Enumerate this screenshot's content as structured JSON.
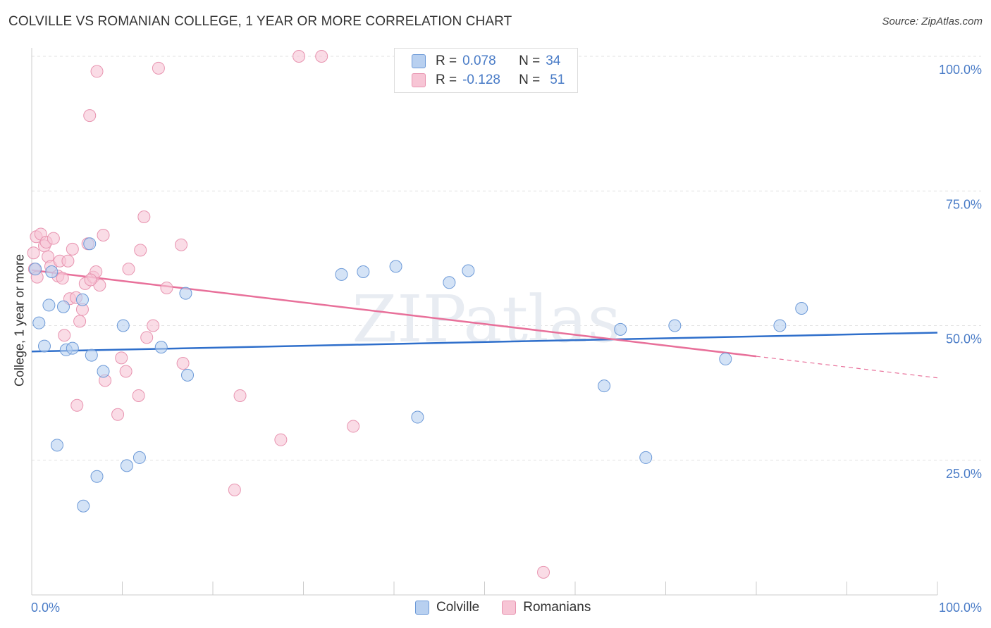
{
  "title": "COLVILLE VS ROMANIAN COLLEGE, 1 YEAR OR MORE CORRELATION CHART",
  "source": "Source: ZipAtlas.com",
  "watermark": "ZIPatlas",
  "legend": {
    "colville": {
      "r_label": "R =",
      "r_value": "0.078",
      "n_label": "N =",
      "n_value": "34"
    },
    "romanians": {
      "r_label": "R =",
      "r_value": "-0.128",
      "n_label": "N =",
      "n_value": "51"
    }
  },
  "colors": {
    "blue_fill": "#b8d0f0",
    "blue_stroke": "#6d9ad8",
    "blue_line": "#2f6fcb",
    "pink_fill": "#f7c5d5",
    "pink_stroke": "#e894b0",
    "pink_line": "#e8709a",
    "tick_text": "#4a7cc7",
    "grid": "#e2e2e2"
  },
  "chart_data": {
    "type": "scatter",
    "title": "COLVILLE VS ROMANIAN COLLEGE, 1 YEAR OR MORE CORRELATION CHART",
    "xlabel": "",
    "ylabel": "College, 1 year or more",
    "xlim": [
      0,
      100
    ],
    "ylim": [
      0,
      100
    ],
    "x_tick_labels": [
      "0.0%",
      "100.0%"
    ],
    "y_ticks": [
      25,
      50,
      75,
      100
    ],
    "y_tick_labels": [
      "25.0%",
      "50.0%",
      "75.0%",
      "100.0%"
    ],
    "series": [
      {
        "name": "Colville",
        "points": [
          [
            0.4,
            60.5
          ],
          [
            0.8,
            50.5
          ],
          [
            1.4,
            46.2
          ],
          [
            1.9,
            53.8
          ],
          [
            2.2,
            60.0
          ],
          [
            2.8,
            27.8
          ],
          [
            3.5,
            53.5
          ],
          [
            3.8,
            45.5
          ],
          [
            4.5,
            45.8
          ],
          [
            5.6,
            54.8
          ],
          [
            5.7,
            16.5
          ],
          [
            6.4,
            65.2
          ],
          [
            6.6,
            44.5
          ],
          [
            7.2,
            22.0
          ],
          [
            7.9,
            41.5
          ],
          [
            10.1,
            50.0
          ],
          [
            10.5,
            24.0
          ],
          [
            11.9,
            25.5
          ],
          [
            14.3,
            46.0
          ],
          [
            17.2,
            40.8
          ],
          [
            17.0,
            56.0
          ],
          [
            34.2,
            59.5
          ],
          [
            36.6,
            60.0
          ],
          [
            40.2,
            61.0
          ],
          [
            42.6,
            33.0
          ],
          [
            46.1,
            58.0
          ],
          [
            48.2,
            60.2
          ],
          [
            63.2,
            38.8
          ],
          [
            65.0,
            49.3
          ],
          [
            67.8,
            25.5
          ],
          [
            71.0,
            50.0
          ],
          [
            76.6,
            43.8
          ],
          [
            82.6,
            50.0
          ],
          [
            85.0,
            53.2
          ]
        ]
      },
      {
        "name": "Romanians",
        "points": [
          [
            0.5,
            66.5
          ],
          [
            1.0,
            67.0
          ],
          [
            1.4,
            64.8
          ],
          [
            1.6,
            65.5
          ],
          [
            1.8,
            62.8
          ],
          [
            2.1,
            61.0
          ],
          [
            2.4,
            66.2
          ],
          [
            2.9,
            59.2
          ],
          [
            3.1,
            62.0
          ],
          [
            3.4,
            58.8
          ],
          [
            3.6,
            48.2
          ],
          [
            4.0,
            62.0
          ],
          [
            4.2,
            55.0
          ],
          [
            4.5,
            64.2
          ],
          [
            4.9,
            55.2
          ],
          [
            5.0,
            35.2
          ],
          [
            5.3,
            50.8
          ],
          [
            5.6,
            53.0
          ],
          [
            5.9,
            57.8
          ],
          [
            6.2,
            65.2
          ],
          [
            6.4,
            89.0
          ],
          [
            6.8,
            59.0
          ],
          [
            7.1,
            60.0
          ],
          [
            7.2,
            97.2
          ],
          [
            7.5,
            57.5
          ],
          [
            7.9,
            66.8
          ],
          [
            8.1,
            39.8
          ],
          [
            9.5,
            33.5
          ],
          [
            9.9,
            44.0
          ],
          [
            10.4,
            41.5
          ],
          [
            10.7,
            60.5
          ],
          [
            11.8,
            37.0
          ],
          [
            12.0,
            64.0
          ],
          [
            12.4,
            70.2
          ],
          [
            12.7,
            47.8
          ],
          [
            13.4,
            50.0
          ],
          [
            14.0,
            97.8
          ],
          [
            14.9,
            57.0
          ],
          [
            16.5,
            65.0
          ],
          [
            16.7,
            43.0
          ],
          [
            22.4,
            19.5
          ],
          [
            23.0,
            37.0
          ],
          [
            27.5,
            28.8
          ],
          [
            29.5,
            100.0
          ],
          [
            32.0,
            100.0
          ],
          [
            35.5,
            31.3
          ],
          [
            56.5,
            4.2
          ],
          [
            0.3,
            60.5
          ],
          [
            0.2,
            63.5
          ],
          [
            0.6,
            59.0
          ],
          [
            6.5,
            58.5
          ]
        ]
      }
    ],
    "trend_lines": [
      {
        "series": "Colville",
        "from": [
          0,
          45.2
        ],
        "to": [
          100,
          48.7
        ]
      },
      {
        "series": "Romanians",
        "from": [
          0,
          60.3
        ],
        "to": [
          80,
          44.3
        ],
        "dashed_to": [
          100,
          40.3
        ]
      }
    ]
  }
}
